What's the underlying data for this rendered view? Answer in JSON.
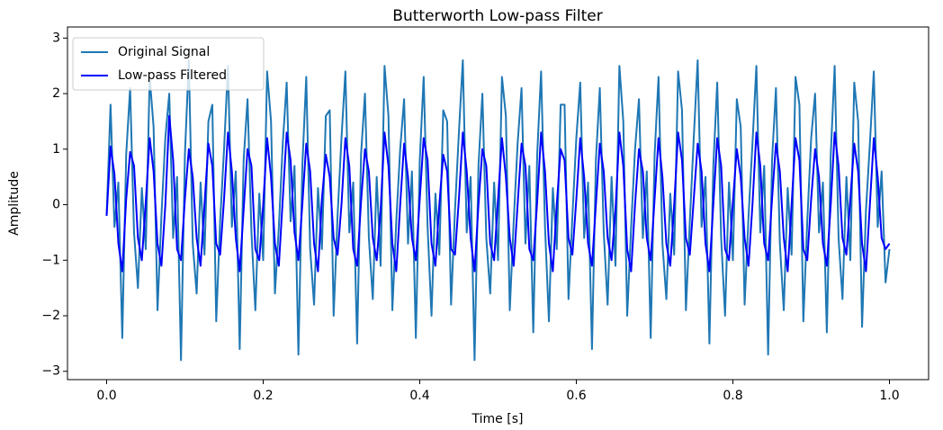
{
  "chart_data": {
    "type": "line",
    "title": "Butterworth Low-pass Filter",
    "xlabel": "Time [s]",
    "ylabel": "Amplitude",
    "x": [
      0,
      0.005,
      0.01,
      0.015,
      0.02,
      0.025,
      0.03,
      0.035,
      0.04,
      0.045,
      0.05,
      0.055,
      0.06,
      0.065,
      0.07,
      0.075,
      0.08,
      0.085,
      0.09,
      0.095,
      0.1,
      0.105,
      0.11,
      0.115,
      0.12,
      0.125,
      0.13,
      0.135,
      0.14,
      0.145,
      0.15,
      0.155,
      0.16,
      0.165,
      0.17,
      0.175,
      0.18,
      0.185,
      0.19,
      0.195,
      0.2,
      0.205,
      0.21,
      0.215,
      0.22,
      0.225,
      0.23,
      0.235,
      0.24,
      0.245,
      0.25,
      0.255,
      0.26,
      0.265,
      0.27,
      0.275,
      0.28,
      0.285,
      0.29,
      0.295,
      0.3,
      0.305,
      0.31,
      0.315,
      0.32,
      0.325,
      0.33,
      0.335,
      0.34,
      0.345,
      0.35,
      0.355,
      0.36,
      0.365,
      0.37,
      0.375,
      0.38,
      0.385,
      0.39,
      0.395,
      0.4,
      0.405,
      0.41,
      0.415,
      0.42,
      0.425,
      0.43,
      0.435,
      0.44,
      0.445,
      0.45,
      0.455,
      0.46,
      0.465,
      0.47,
      0.475,
      0.48,
      0.485,
      0.49,
      0.495,
      0.5,
      0.505,
      0.51,
      0.515,
      0.52,
      0.525,
      0.53,
      0.535,
      0.54,
      0.545,
      0.55,
      0.555,
      0.56,
      0.565,
      0.57,
      0.575,
      0.58,
      0.585,
      0.59,
      0.595,
      0.6,
      0.605,
      0.61,
      0.615,
      0.62,
      0.625,
      0.63,
      0.635,
      0.64,
      0.645,
      0.65,
      0.655,
      0.66,
      0.665,
      0.67,
      0.675,
      0.68,
      0.685,
      0.69,
      0.695,
      0.7,
      0.705,
      0.71,
      0.715,
      0.72,
      0.725,
      0.73,
      0.735,
      0.74,
      0.745,
      0.75,
      0.755,
      0.76,
      0.765,
      0.77,
      0.775,
      0.78,
      0.785,
      0.79,
      0.795,
      0.8,
      0.805,
      0.81,
      0.815,
      0.82,
      0.825,
      0.83,
      0.835,
      0.84,
      0.845,
      0.85,
      0.855,
      0.86,
      0.865,
      0.87,
      0.875,
      0.88,
      0.885,
      0.89,
      0.895,
      0.9,
      0.905,
      0.91,
      0.915,
      0.92,
      0.925,
      0.93,
      0.935,
      0.94,
      0.945,
      0.95,
      0.955,
      0.96,
      0.965,
      0.97,
      0.975,
      0.98,
      0.985,
      0.99,
      0.995,
      1.0
    ],
    "series": [
      {
        "name": "Original Signal",
        "color": "#1f77b4",
        "values": [
          -0.2,
          1.8,
          -0.4,
          0.4,
          -2.4,
          0.9,
          2.1,
          -0.5,
          -1.5,
          0.3,
          -0.8,
          2.3,
          1.4,
          -1.9,
          -0.2,
          1.2,
          2.0,
          -0.6,
          0.5,
          -2.8,
          0.9,
          2.6,
          -0.7,
          -1.6,
          0.4,
          -0.9,
          1.5,
          1.8,
          -2.1,
          -0.3,
          1.0,
          2.5,
          -0.4,
          0.6,
          -2.6,
          0.8,
          1.9,
          -0.5,
          -1.9,
          0.2,
          -1.0,
          2.4,
          1.5,
          -1.6,
          -0.4,
          1.1,
          2.2,
          -0.3,
          0.7,
          -2.7,
          0.7,
          2.3,
          -0.8,
          -1.8,
          0.3,
          -0.8,
          1.6,
          1.7,
          -2.0,
          -0.2,
          1.2,
          2.4,
          -0.5,
          0.4,
          -2.5,
          0.9,
          2.0,
          -0.6,
          -1.7,
          0.5,
          -1.1,
          2.5,
          1.6,
          -1.9,
          -0.3,
          1.0,
          1.9,
          -0.7,
          0.6,
          -2.4,
          0.8,
          2.3,
          -0.4,
          -2.0,
          0.2,
          -0.9,
          1.7,
          1.5,
          -1.8,
          -0.1,
          1.3,
          2.6,
          -0.5,
          0.5,
          -2.8,
          0.7,
          2.0,
          -0.6,
          -1.6,
          0.4,
          -1.0,
          2.3,
          1.6,
          -1.9,
          -0.3,
          1.1,
          2.1,
          -0.7,
          0.7,
          -2.3,
          0.9,
          2.4,
          -0.4,
          -2.1,
          0.3,
          -0.8,
          1.8,
          1.8,
          -1.7,
          -0.2,
          1.2,
          2.2,
          -0.6,
          0.4,
          -2.6,
          0.8,
          2.1,
          -0.5,
          -1.8,
          0.5,
          -1.1,
          2.5,
          1.5,
          -2.0,
          -0.4,
          1.0,
          1.9,
          -0.6,
          0.6,
          -2.4,
          0.9,
          2.3,
          -0.7,
          -1.7,
          0.2,
          -0.9,
          2.4,
          1.7,
          -1.9,
          -0.3,
          1.2,
          2.6,
          -0.4,
          0.5,
          -2.5,
          0.7,
          2.2,
          -0.6,
          -2.0,
          0.4,
          -1.0,
          1.9,
          1.4,
          -1.8,
          -0.2,
          1.1,
          2.5,
          -0.5,
          0.7,
          -2.7,
          0.8,
          2.1,
          -0.7,
          -1.9,
          0.3,
          -0.9,
          2.3,
          1.8,
          -2.1,
          -0.3,
          1.2,
          2.0,
          -0.5,
          0.4,
          -2.3,
          0.9,
          2.5,
          -0.6,
          -1.7,
          0.5,
          -1.0,
          2.2,
          1.5,
          -2.2,
          -0.1,
          1.1,
          2.4,
          -0.4,
          0.6,
          -1.4,
          -0.8
        ]
      },
      {
        "name": "Low-pass Filtered",
        "color": "#0000ff",
        "values": [
          -0.2,
          1.05,
          0.55,
          -0.7,
          -1.2,
          0.1,
          0.95,
          0.7,
          -0.6,
          -1.0,
          0.05,
          1.2,
          0.6,
          -0.7,
          -1.1,
          0.0,
          1.6,
          0.8,
          -0.8,
          -1.0,
          0.1,
          1.0,
          0.5,
          -0.6,
          -1.1,
          0.0,
          1.1,
          0.7,
          -0.7,
          -0.9,
          0.1,
          1.3,
          0.6,
          -0.6,
          -1.2,
          -0.1,
          1.0,
          0.7,
          -0.8,
          -1.0,
          0.0,
          1.2,
          0.5,
          -0.7,
          -1.1,
          0.1,
          1.3,
          0.8,
          -0.5,
          -1.0,
          0.0,
          1.1,
          0.6,
          -0.7,
          -1.2,
          0.1,
          0.9,
          0.5,
          -0.6,
          -0.9,
          0.0,
          1.2,
          0.7,
          -0.8,
          -1.1,
          0.05,
          1.0,
          0.6,
          -0.6,
          -1.0,
          -0.1,
          1.3,
          0.7,
          -0.7,
          -1.2,
          0.0,
          1.1,
          0.5,
          -0.6,
          -1.0,
          0.1,
          1.2,
          0.8,
          -0.7,
          -1.1,
          0.0,
          0.9,
          0.6,
          -0.8,
          -0.9,
          0.1,
          1.3,
          0.6,
          -0.6,
          -1.2,
          0.0,
          1.0,
          0.7,
          -0.7,
          -1.0,
          0.1,
          1.2,
          0.5,
          -0.6,
          -1.1,
          0.0,
          1.1,
          0.7,
          -0.8,
          -1.0,
          0.05,
          1.3,
          0.6,
          -0.7,
          -1.2,
          0.0,
          1.0,
          0.8,
          -0.6,
          -0.9,
          0.1,
          1.2,
          0.5,
          -0.7,
          -1.1,
          0.0,
          1.1,
          0.6,
          -0.6,
          -1.0,
          -0.1,
          1.3,
          0.7,
          -0.8,
          -1.2,
          0.0,
          1.0,
          0.6,
          -0.6,
          -1.0,
          0.1,
          1.2,
          0.5,
          -0.7,
          -1.1,
          0.0,
          1.3,
          0.8,
          -0.6,
          -0.9,
          0.1,
          1.1,
          0.6,
          -0.7,
          -1.2,
          0.0,
          1.2,
          0.7,
          -0.8,
          -1.0,
          0.05,
          1.0,
          0.5,
          -0.6,
          -1.1,
          0.0,
          1.3,
          0.7,
          -0.7,
          -1.0,
          0.1,
          1.1,
          0.6,
          -0.6,
          -1.2,
          0.0,
          1.2,
          0.8,
          -0.8,
          -1.0,
          0.1,
          1.0,
          0.5,
          -0.7,
          -1.1,
          0.0,
          1.3,
          0.7,
          -0.6,
          -0.9,
          0.1,
          1.1,
          0.6,
          -0.7,
          -1.2,
          0.0,
          1.2,
          0.5,
          -0.6,
          -0.8,
          -0.7
        ]
      }
    ],
    "xlim": [
      -0.05,
      1.05
    ],
    "ylim": [
      -3.15,
      3.2
    ],
    "xticks": [
      {
        "value": 0,
        "label": "0.0"
      },
      0.2,
      0.4,
      0.6,
      0.8,
      {
        "value": 1,
        "label": "1.0"
      }
    ],
    "yticks": [
      {
        "value": -3,
        "label": "−3"
      },
      {
        "value": -2,
        "label": "−2"
      },
      {
        "value": -1,
        "label": "−1"
      },
      0,
      1,
      2,
      3
    ],
    "legend": "upper left"
  }
}
